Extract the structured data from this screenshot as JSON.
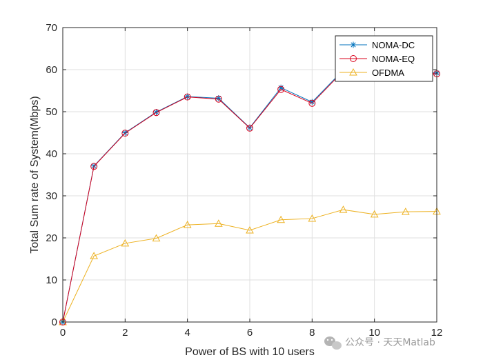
{
  "chart_data": {
    "type": "line",
    "x": [
      0,
      1,
      2,
      3,
      4,
      5,
      6,
      7,
      8,
      9,
      10,
      11,
      12
    ],
    "series": [
      {
        "name": "NOMA-DC",
        "color": "#0072BD",
        "marker": "asterisk",
        "values": [
          0,
          37.1,
          45.0,
          49.9,
          53.6,
          53.2,
          46.2,
          55.7,
          52.3,
          59.9,
          60.3,
          59.6,
          59.2
        ]
      },
      {
        "name": "NOMA-EQ",
        "color": "#D9001B",
        "marker": "circle",
        "values": [
          0,
          37.0,
          44.9,
          49.8,
          53.5,
          53.0,
          46.1,
          55.3,
          52.0,
          59.7,
          60.0,
          59.3,
          59.0
        ]
      },
      {
        "name": "OFDMA",
        "color": "#EDB120",
        "marker": "triangle",
        "values": [
          0,
          15.7,
          18.7,
          19.9,
          23.1,
          23.4,
          21.8,
          24.3,
          24.6,
          26.7,
          25.6,
          26.2,
          26.3
        ]
      }
    ],
    "xlabel": "Power of BS with 10 users",
    "ylabel": "Total Sum rate of System(Mbps)",
    "xlim": [
      0,
      12
    ],
    "ylim": [
      0,
      70
    ],
    "xticks": [
      0,
      2,
      4,
      6,
      8,
      10,
      12
    ],
    "yticks": [
      0,
      10,
      20,
      30,
      40,
      50,
      60,
      70
    ],
    "grid": true,
    "legend_position": "top-right"
  },
  "watermark": {
    "text": "公众号 · 天天Matlab",
    "icon": "wechat-icon"
  }
}
